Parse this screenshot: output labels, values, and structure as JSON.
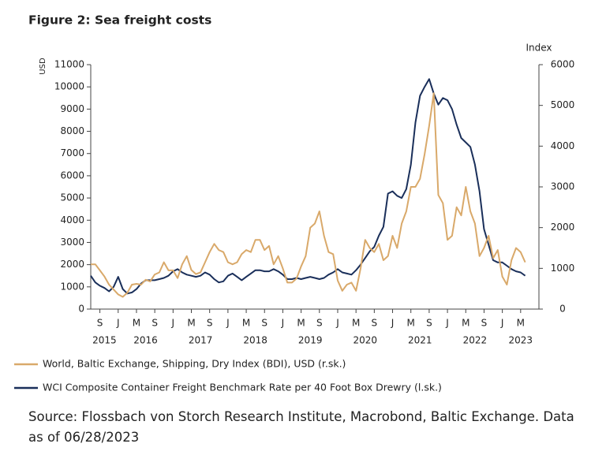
{
  "chart_data": {
    "type": "line",
    "title": "Figure 2: Sea freight costs",
    "y_label": "USD",
    "y2_label": "Index",
    "x": [
      "2015-07",
      "2015-08",
      "2015-09",
      "2015-10",
      "2015-11",
      "2015-12",
      "2016-01",
      "2016-02",
      "2016-03",
      "2016-04",
      "2016-05",
      "2016-06",
      "2016-07",
      "2016-08",
      "2016-09",
      "2016-10",
      "2016-11",
      "2016-12",
      "2017-01",
      "2017-02",
      "2017-03",
      "2017-04",
      "2017-05",
      "2017-06",
      "2017-07",
      "2017-08",
      "2017-09",
      "2017-10",
      "2017-11",
      "2017-12",
      "2018-01",
      "2018-02",
      "2018-03",
      "2018-04",
      "2018-05",
      "2018-06",
      "2018-07",
      "2018-08",
      "2018-09",
      "2018-10",
      "2018-11",
      "2018-12",
      "2019-01",
      "2019-02",
      "2019-03",
      "2019-04",
      "2019-05",
      "2019-06",
      "2019-07",
      "2019-08",
      "2019-09",
      "2019-10",
      "2019-11",
      "2019-12",
      "2020-01",
      "2020-02",
      "2020-03",
      "2020-04",
      "2020-05",
      "2020-06",
      "2020-07",
      "2020-08",
      "2020-09",
      "2020-10",
      "2020-11",
      "2020-12",
      "2021-01",
      "2021-02",
      "2021-03",
      "2021-04",
      "2021-05",
      "2021-06",
      "2021-07",
      "2021-08",
      "2021-09",
      "2021-10",
      "2021-11",
      "2021-12",
      "2022-01",
      "2022-02",
      "2022-03",
      "2022-04",
      "2022-05",
      "2022-06",
      "2022-07",
      "2022-08",
      "2022-09",
      "2022-10",
      "2022-11",
      "2022-12",
      "2023-01",
      "2023-02",
      "2023-03",
      "2023-04",
      "2023-05",
      "2023-06"
    ],
    "series": [
      {
        "name": "World, Baltic Exchange, Shipping, Dry Index (BDI), USD (r.sk.)",
        "color": "#d9a96a",
        "axis": "y2",
        "values": [
          1100,
          1100,
          950,
          800,
          600,
          480,
          360,
          300,
          400,
          600,
          620,
          600,
          720,
          680,
          850,
          900,
          1150,
          950,
          950,
          760,
          1100,
          1300,
          960,
          860,
          900,
          1150,
          1400,
          1600,
          1450,
          1400,
          1150,
          1100,
          1150,
          1350,
          1450,
          1400,
          1700,
          1700,
          1450,
          1550,
          1100,
          1300,
          1000,
          650,
          650,
          750,
          1050,
          1300,
          2000,
          2100,
          2400,
          1800,
          1400,
          1350,
          700,
          450,
          600,
          650,
          450,
          1000,
          1700,
          1500,
          1400,
          1600,
          1200,
          1300,
          1800,
          1500,
          2100,
          2400,
          3000,
          3000,
          3200,
          3800,
          4500,
          5300,
          2800,
          2600,
          1700,
          1800,
          2500,
          2300,
          3000,
          2400,
          2100,
          1300,
          1500,
          1800,
          1250,
          1450,
          800,
          600,
          1200,
          1500,
          1400,
          1150
        ]
      },
      {
        "name": "WCI Composite Container Freight Benchmark Rate per 40 Foot Box Drewry (l.sk.)",
        "color": "#1a2f5a",
        "values": [
          1500,
          1200,
          1050,
          950,
          800,
          1000,
          1450,
          900,
          700,
          750,
          900,
          1150,
          1300,
          1300,
          1300,
          1350,
          1400,
          1500,
          1700,
          1800,
          1650,
          1550,
          1500,
          1450,
          1500,
          1650,
          1550,
          1350,
          1200,
          1250,
          1500,
          1600,
          1450,
          1300,
          1450,
          1600,
          1750,
          1750,
          1700,
          1700,
          1800,
          1700,
          1550,
          1350,
          1350,
          1400,
          1350,
          1400,
          1450,
          1400,
          1350,
          1400,
          1550,
          1650,
          1800,
          1650,
          1600,
          1550,
          1750,
          2000,
          2300,
          2600,
          2800,
          3300,
          3700,
          5200,
          5300,
          5100,
          5000,
          5400,
          6500,
          8400,
          9600,
          10000,
          10350,
          9700,
          9200,
          9500,
          9400,
          9000,
          8300,
          7700,
          7500,
          7300,
          6500,
          5300,
          3600,
          2900,
          2200,
          2100,
          2100,
          1950,
          1800,
          1700,
          1650,
          1500
        ]
      }
    ],
    "xlim": [
      "2015-07",
      "2023-09"
    ],
    "xticks": [
      {
        "value": "2015-09",
        "label": "S"
      },
      {
        "value": "2016-01",
        "label": "J"
      },
      {
        "value": "2016-05",
        "label": "M"
      },
      {
        "value": "2016-09",
        "label": "S"
      },
      {
        "value": "2017-01",
        "label": "J"
      },
      {
        "value": "2017-05",
        "label": "M"
      },
      {
        "value": "2017-09",
        "label": "S"
      },
      {
        "value": "2018-01",
        "label": "J"
      },
      {
        "value": "2018-05",
        "label": "M"
      },
      {
        "value": "2018-09",
        "label": "S"
      },
      {
        "value": "2019-01",
        "label": "J"
      },
      {
        "value": "2019-05",
        "label": "M"
      },
      {
        "value": "2019-09",
        "label": "S"
      },
      {
        "value": "2020-01",
        "label": "J"
      },
      {
        "value": "2020-05",
        "label": "M"
      },
      {
        "value": "2020-09",
        "label": "S"
      },
      {
        "value": "2021-01",
        "label": "J"
      },
      {
        "value": "2021-05",
        "label": "M"
      },
      {
        "value": "2021-09",
        "label": "S"
      },
      {
        "value": "2022-01",
        "label": "J"
      },
      {
        "value": "2022-05",
        "label": "M"
      },
      {
        "value": "2022-09",
        "label": "S"
      },
      {
        "value": "2023-01",
        "label": "J"
      },
      {
        "value": "2023-05",
        "label": "M"
      }
    ],
    "year_labels": [
      {
        "value": "2015-10",
        "label": "2015"
      },
      {
        "value": "2016-07",
        "label": "2016"
      },
      {
        "value": "2017-07",
        "label": "2017"
      },
      {
        "value": "2018-07",
        "label": "2018"
      },
      {
        "value": "2019-07",
        "label": "2019"
      },
      {
        "value": "2020-07",
        "label": "2020"
      },
      {
        "value": "2021-07",
        "label": "2021"
      },
      {
        "value": "2022-07",
        "label": "2022"
      },
      {
        "value": "2023-05",
        "label": "2023"
      }
    ],
    "ylim": [
      0,
      11000
    ],
    "yticks": [
      0,
      1000,
      2000,
      3000,
      4000,
      5000,
      6000,
      7000,
      8000,
      9000,
      10000,
      11000
    ],
    "y2lim": [
      0,
      6000
    ],
    "y2ticks": [
      0,
      1000,
      2000,
      3000,
      4000,
      5000,
      6000
    ],
    "grid": false,
    "source": "Source: Flossbach von Storch Research Institute, Macrobond, Baltic Exchange. Data as of 06/28/2023"
  }
}
